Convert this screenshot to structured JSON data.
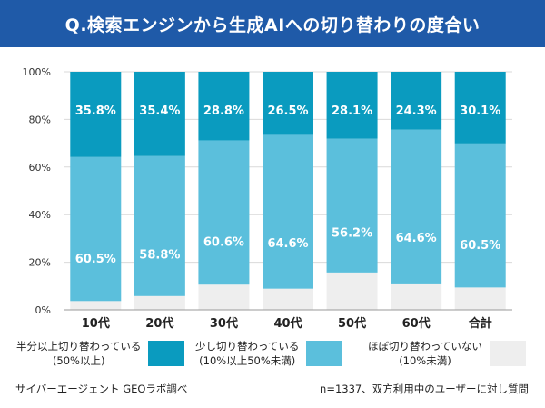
{
  "title": "Q.検索エンジンから生成AIへの切り替わりの度合い",
  "chart_data": {
    "type": "bar",
    "stacked": true,
    "categories": [
      "10代",
      "20代",
      "30代",
      "40代",
      "50代",
      "60代",
      "合計"
    ],
    "series": [
      {
        "name": "ほぼ切り替わっていない（10%未満）",
        "color": "#eeeeee",
        "values": [
          3.7,
          5.8,
          10.6,
          8.9,
          15.7,
          11.1,
          9.4
        ],
        "labels": [
          "",
          "",
          "",
          "",
          "",
          "",
          ""
        ]
      },
      {
        "name": "少し切り替わっている（10%以上50%未満）",
        "color": "#5bbfdc",
        "values": [
          60.5,
          58.8,
          60.6,
          64.6,
          56.2,
          64.6,
          60.5
        ],
        "labels": [
          "60.5%",
          "58.8%",
          "60.6%",
          "64.6%",
          "56.2%",
          "64.6%",
          "60.5%"
        ]
      },
      {
        "name": "半分以上切り替わっている（50%以上）",
        "color": "#0a9bbf",
        "values": [
          35.8,
          35.4,
          28.8,
          26.5,
          28.1,
          24.3,
          30.1
        ],
        "labels": [
          "35.8%",
          "35.4%",
          "28.8%",
          "26.5%",
          "28.1%",
          "24.3%",
          "30.1%"
        ]
      }
    ],
    "ylim": [
      0,
      100
    ],
    "yticks": [
      "0%",
      "20%",
      "40%",
      "60%",
      "80%",
      "100%"
    ],
    "ytick_values": [
      0,
      20,
      40,
      60,
      80,
      100
    ],
    "grid": true
  },
  "legend": [
    {
      "line1": "半分以上切り替わっている",
      "line2": "(50%以上)",
      "color": "#0a9bbf"
    },
    {
      "line1": "少し切り替わっている",
      "line2": "(10%以上50%未満)",
      "color": "#5bbfdc"
    },
    {
      "line1": "ほぼ切り替わっていない",
      "line2": "(10%未満)",
      "color": "#eeeeee"
    }
  ],
  "footer": {
    "source": "サイバーエージェント GEOラボ調べ",
    "note": "n=1337、双方利用中のユーザーに対し質問"
  }
}
